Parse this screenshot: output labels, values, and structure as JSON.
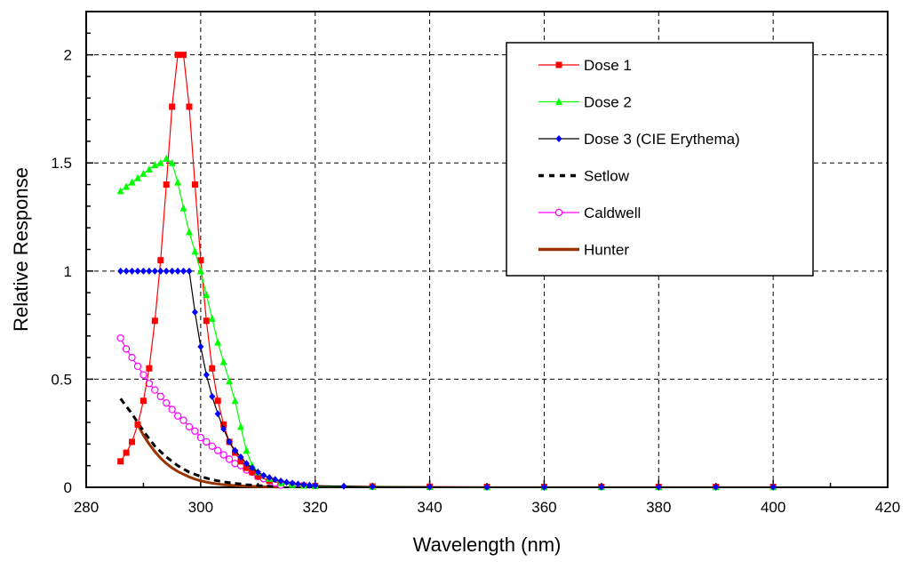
{
  "chart_data": {
    "type": "line",
    "title": "",
    "xlabel": "Wavelength (nm)",
    "ylabel": "Relative Response",
    "xlim": [
      280,
      420
    ],
    "ylim": [
      0,
      2.2
    ],
    "xticks": [
      280,
      300,
      320,
      340,
      360,
      380,
      400,
      420
    ],
    "xtick_labels": [
      "280",
      "300",
      "320",
      "340",
      "360",
      "380",
      "400",
      "420"
    ],
    "yticks": [
      0,
      0.5,
      1,
      1.5,
      2
    ],
    "ytick_labels": [
      "0",
      "0.5",
      "1",
      "1.5",
      "2"
    ],
    "grid": true,
    "legend_position": "top-right",
    "series": [
      {
        "name": "Dose 1",
        "color": "#ff0000",
        "marker": "square",
        "line_style": "solid",
        "x": [
          286,
          287,
          288,
          289,
          290,
          291,
          292,
          293,
          294,
          295,
          296,
          297,
          298,
          299,
          300,
          301,
          302,
          303,
          304,
          305,
          306,
          307,
          308,
          309,
          310,
          312,
          314,
          316,
          318,
          320,
          330,
          340,
          350,
          360,
          370,
          380,
          390,
          400
        ],
        "y": [
          0.12,
          0.16,
          0.21,
          0.29,
          0.4,
          0.55,
          0.77,
          1.05,
          1.4,
          1.76,
          2.0,
          2.0,
          1.76,
          1.4,
          1.05,
          0.77,
          0.55,
          0.4,
          0.29,
          0.21,
          0.16,
          0.12,
          0.09,
          0.07,
          0.05,
          0.03,
          0.02,
          0.012,
          0.008,
          0.006,
          0.004,
          0.003,
          0.002,
          0.002,
          0.002,
          0.002,
          0.002,
          0.002
        ]
      },
      {
        "name": "Dose 2",
        "color": "#00ff00",
        "marker": "triangle",
        "line_style": "solid",
        "x": [
          286,
          287,
          288,
          289,
          290,
          291,
          292,
          293,
          294,
          295,
          296,
          297,
          298,
          299,
          300,
          301,
          302,
          303,
          304,
          305,
          306,
          307,
          308,
          309,
          310,
          312,
          314,
          316,
          318,
          320,
          330,
          340,
          350,
          360,
          370,
          380,
          390,
          400
        ],
        "y": [
          1.37,
          1.39,
          1.41,
          1.43,
          1.45,
          1.47,
          1.49,
          1.5,
          1.52,
          1.5,
          1.41,
          1.29,
          1.18,
          1.09,
          1.0,
          0.89,
          0.78,
          0.67,
          0.58,
          0.49,
          0.4,
          0.28,
          0.17,
          0.1,
          0.07,
          0.04,
          0.02,
          0.012,
          0.008,
          0.006,
          0.003,
          0.002,
          0.001,
          0.001,
          0.001,
          0.001,
          0.001,
          0.001
        ]
      },
      {
        "name": "Dose 3 (CIE Erythema)",
        "color": "#0000ff",
        "line_color": "#000000",
        "marker": "diamond",
        "line_style": "solid",
        "x": [
          286,
          287,
          288,
          289,
          290,
          291,
          292,
          293,
          294,
          295,
          296,
          297,
          298,
          299,
          300,
          301,
          302,
          303,
          304,
          305,
          306,
          307,
          308,
          309,
          310,
          311,
          312,
          313,
          314,
          315,
          316,
          317,
          318,
          319,
          320,
          325,
          330,
          340,
          350,
          360,
          370,
          380,
          390,
          400
        ],
        "y": [
          1.0,
          1.0,
          1.0,
          1.0,
          1.0,
          1.0,
          1.0,
          1.0,
          1.0,
          1.0,
          1.0,
          1.0,
          1.0,
          0.81,
          0.65,
          0.52,
          0.42,
          0.34,
          0.27,
          0.21,
          0.17,
          0.14,
          0.11,
          0.09,
          0.07,
          0.055,
          0.045,
          0.036,
          0.029,
          0.023,
          0.019,
          0.015,
          0.012,
          0.01,
          0.008,
          0.005,
          0.003,
          0.002,
          0.001,
          0.001,
          0.001,
          0.001,
          0.001,
          0.001
        ]
      },
      {
        "name": "Setlow",
        "color": "#000000",
        "marker": "none",
        "line_style": "dashed",
        "x": [
          286,
          288,
          290,
          292,
          294,
          296,
          298,
          300,
          302,
          304,
          306,
          308,
          310,
          312,
          314
        ],
        "y": [
          0.41,
          0.34,
          0.26,
          0.19,
          0.14,
          0.1,
          0.07,
          0.05,
          0.035,
          0.025,
          0.018,
          0.012,
          0.008,
          0.005,
          0.003
        ]
      },
      {
        "name": "Caldwell",
        "color": "#ff00ff",
        "marker": "circle",
        "line_style": "solid",
        "x": [
          286,
          287,
          288,
          289,
          290,
          291,
          292,
          293,
          294,
          295,
          296,
          297,
          298,
          299,
          300,
          301,
          302,
          303,
          304,
          305,
          306,
          307,
          308,
          309,
          310,
          311,
          312,
          313,
          314
        ],
        "y": [
          0.69,
          0.64,
          0.6,
          0.56,
          0.52,
          0.48,
          0.45,
          0.42,
          0.39,
          0.36,
          0.33,
          0.31,
          0.28,
          0.26,
          0.23,
          0.21,
          0.19,
          0.17,
          0.15,
          0.13,
          0.11,
          0.1,
          0.08,
          0.07,
          0.05,
          0.04,
          0.03,
          0.02,
          0.01
        ]
      },
      {
        "name": "Hunter",
        "color": "#993300",
        "marker": "none",
        "line_style": "solid",
        "x": [
          289,
          290,
          291,
          292,
          293,
          294,
          295,
          296,
          297,
          298,
          299,
          300,
          301,
          302,
          304,
          306,
          308,
          310,
          312,
          314
        ],
        "y": [
          0.29,
          0.24,
          0.2,
          0.165,
          0.135,
          0.11,
          0.09,
          0.073,
          0.06,
          0.048,
          0.038,
          0.03,
          0.024,
          0.019,
          0.012,
          0.008,
          0.005,
          0.003,
          0.002,
          0.001
        ]
      }
    ]
  }
}
